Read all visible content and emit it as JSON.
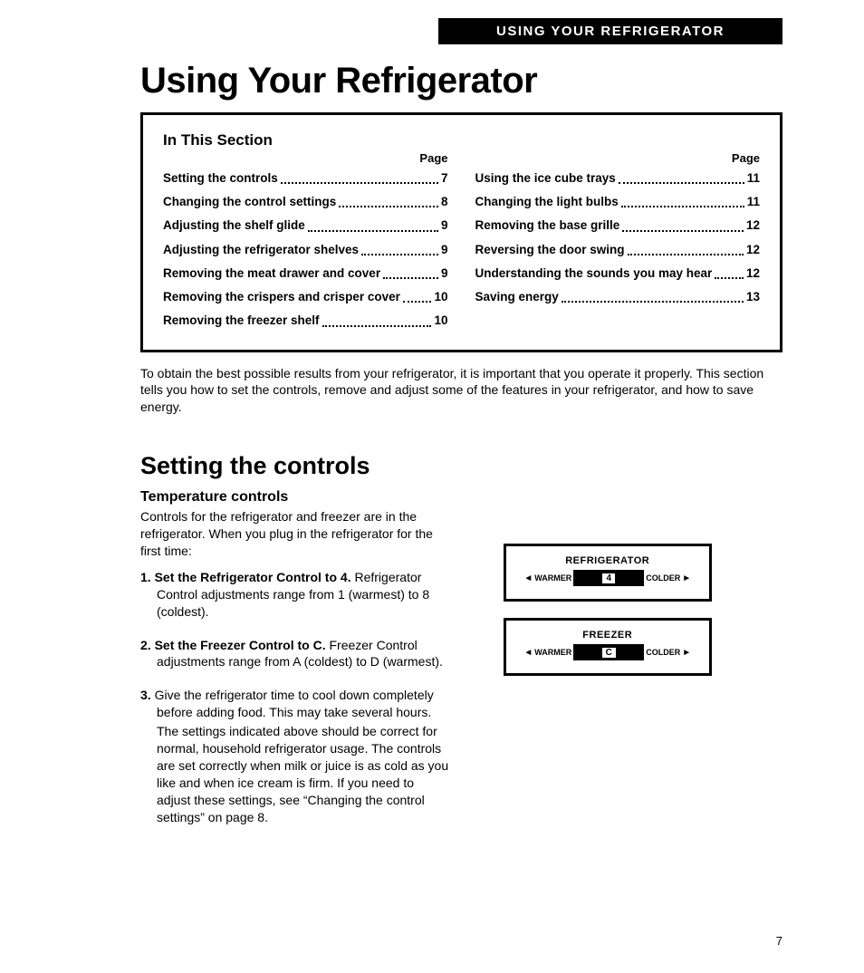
{
  "header_bar": "USING YOUR REFRIGERATOR",
  "main_title": "Using Your Refrigerator",
  "toc": {
    "title": "In This Section",
    "page_header": "Page",
    "left": [
      {
        "label": "Setting the controls",
        "page": "7"
      },
      {
        "label": "Changing the control settings",
        "page": "8"
      },
      {
        "label": "Adjusting the shelf glide",
        "page": "9"
      },
      {
        "label": "Adjusting the refrigerator shelves",
        "page": "9"
      },
      {
        "label": "Removing the meat drawer and cover",
        "page": "9"
      },
      {
        "label": "Removing the crispers and crisper cover",
        "page": "10"
      },
      {
        "label": "Removing the freezer shelf",
        "page": "10"
      }
    ],
    "right": [
      {
        "label": "Using the ice cube trays",
        "page": "11"
      },
      {
        "label": "Changing the light bulbs",
        "page": "11"
      },
      {
        "label": "Removing the base grille",
        "page": "12"
      },
      {
        "label": "Reversing the door swing",
        "page": "12"
      },
      {
        "label": "Understanding the sounds you may hear",
        "page": "12"
      },
      {
        "label": "Saving energy",
        "page": "13"
      }
    ]
  },
  "intro": "To obtain the best possible results from your refrigerator, it is important that you operate it properly. This section tells you how to set the controls, remove and adjust some of the features in your refrigerator, and how to save energy.",
  "setting": {
    "title": "Setting the controls",
    "sub": "Temperature controls",
    "lead": "Controls for the refrigerator and freezer are in the refrigerator. When you plug in the refrigerator for the first time:",
    "steps": {
      "s1_head": "1. Set the Refrigerator Control to 4.",
      "s1_body": "Refrigerator Control adjustments range from 1 (warmest) to 8 (coldest).",
      "s2_head": "2. Set the Freezer Control to C.",
      "s2_body": "Freezer Control adjustments range from A (coldest) to D (warmest).",
      "s3_head": "3.",
      "s3_body": "Give the refrigerator time to cool down completely before adding food. This may take several hours.",
      "s3_para": "The settings indicated above should be correct for normal, household refrigerator usage. The controls are set correctly when milk or juice is as cold as you like and when ice cream is firm. If you need to adjust these settings, see “Changing the control settings” on page 8."
    }
  },
  "controls": {
    "refrigerator": {
      "title": "REFRIGERATOR",
      "warmer": "WARMER",
      "colder": "COLDER",
      "value": "4"
    },
    "freezer": {
      "title": "FREEZER",
      "warmer": "WARMER",
      "colder": "COLDER",
      "value": "C"
    }
  },
  "page_number": "7"
}
